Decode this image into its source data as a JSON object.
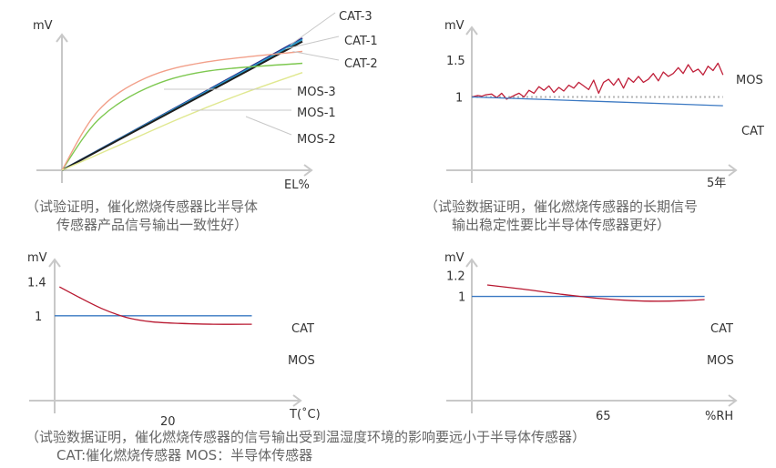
{
  "chart_data": [
    {
      "type": "line",
      "xlabel": "EL%",
      "ylabel": "mV",
      "series": [
        {
          "name": "CAT-3",
          "color": "#2a2a8a",
          "points": [
            [
              0,
              0
            ],
            [
              1,
              1
            ]
          ]
        },
        {
          "name": "CAT-1",
          "color": "#2a9ac8",
          "points": [
            [
              0,
              0
            ],
            [
              1,
              0.99
            ]
          ]
        },
        {
          "name": "CAT-2",
          "color": "#1e1e1e",
          "points": [
            [
              0,
              0
            ],
            [
              1,
              0.975
            ]
          ]
        },
        {
          "name": "MOS-3",
          "color": "#7ec850",
          "points": [
            [
              0,
              0
            ],
            [
              0.15,
              0.38
            ],
            [
              0.35,
              0.62
            ],
            [
              0.6,
              0.75
            ],
            [
              1,
              0.81
            ]
          ]
        },
        {
          "name": "MOS-1",
          "color": "#f2a08a",
          "points": [
            [
              0,
              0
            ],
            [
              0.15,
              0.45
            ],
            [
              0.35,
              0.7
            ],
            [
              0.6,
              0.82
            ],
            [
              1,
              0.9
            ]
          ]
        },
        {
          "name": "MOS-2",
          "color": "#e0e890",
          "points": [
            [
              0,
              0
            ],
            [
              0.25,
              0.2
            ],
            [
              0.5,
              0.4
            ],
            [
              0.75,
              0.58
            ],
            [
              1,
              0.74
            ]
          ]
        }
      ],
      "caption": [
        "（试验证明，催化燃烧传感器比半导体",
        "传感器产品信号输出一致性好）"
      ]
    },
    {
      "type": "line",
      "xlabel": "5年",
      "ylabel": "mV",
      "yticks": [
        "1.5",
        "1"
      ],
      "ylim": [
        0,
        1.9
      ],
      "xlim": [
        0,
        5.2
      ],
      "reference_line": {
        "y": 1,
        "style": "dotted"
      },
      "series": [
        {
          "name": "MOS",
          "color": "#c0203a",
          "points": [
            [
              0,
              1
            ],
            [
              0.12,
              1.02
            ],
            [
              0.2,
              1.01
            ],
            [
              0.28,
              1.03
            ],
            [
              0.4,
              1.04
            ],
            [
              0.5,
              0.99
            ],
            [
              0.6,
              1.05
            ],
            [
              0.7,
              0.97
            ],
            [
              0.85,
              1.02
            ],
            [
              0.95,
              1.05
            ],
            [
              1.05,
              1.0
            ],
            [
              1.15,
              1.09
            ],
            [
              1.25,
              1.05
            ],
            [
              1.35,
              1.14
            ],
            [
              1.45,
              1.09
            ],
            [
              1.55,
              1.15
            ],
            [
              1.65,
              1.06
            ],
            [
              1.75,
              1.13
            ],
            [
              1.85,
              1.08
            ],
            [
              1.95,
              1.16
            ],
            [
              2.05,
              1.12
            ],
            [
              2.15,
              1.2
            ],
            [
              2.25,
              1.15
            ],
            [
              2.35,
              1.1
            ],
            [
              2.45,
              1.23
            ],
            [
              2.55,
              1.05
            ],
            [
              2.65,
              1.2
            ],
            [
              2.75,
              1.24
            ],
            [
              2.85,
              1.16
            ],
            [
              2.95,
              1.25
            ],
            [
              3.05,
              1.12
            ],
            [
              3.15,
              1.26
            ],
            [
              3.25,
              1.2
            ],
            [
              3.35,
              1.28
            ],
            [
              3.45,
              1.2
            ],
            [
              3.55,
              1.24
            ],
            [
              3.65,
              1.32
            ],
            [
              3.75,
              1.22
            ],
            [
              3.85,
              1.34
            ],
            [
              3.95,
              1.28
            ],
            [
              4.05,
              1.32
            ],
            [
              4.15,
              1.4
            ],
            [
              4.25,
              1.32
            ],
            [
              4.35,
              1.44
            ],
            [
              4.45,
              1.34
            ],
            [
              4.55,
              1.38
            ],
            [
              4.65,
              1.3
            ],
            [
              4.75,
              1.42
            ],
            [
              4.85,
              1.36
            ],
            [
              4.95,
              1.46
            ],
            [
              5.05,
              1.3
            ]
          ]
        },
        {
          "name": "CAT",
          "color": "#3a78c2",
          "points": [
            [
              0,
              1
            ],
            [
              5.05,
              0.88
            ]
          ]
        }
      ],
      "caption": [
        "（试验数据证明，催化燃烧传感器的长期信号",
        "输出稳定性要比半导体传感器更好）"
      ]
    },
    {
      "type": "line",
      "xlabel": "T(˚C)",
      "ylabel": "mV",
      "xticks": [
        "20"
      ],
      "yticks": [
        "1.4",
        "1"
      ],
      "ylim": [
        0,
        1.62
      ],
      "xlim": [
        0,
        50
      ],
      "series": [
        {
          "name": "CAT",
          "color": "#3a78c2",
          "points": [
            [
              0,
              1
            ],
            [
              41,
              1
            ]
          ]
        },
        {
          "name": "MOS",
          "color": "#b81830",
          "points": [
            [
              1,
              1.34
            ],
            [
              5,
              1.22
            ],
            [
              10,
              1.08
            ],
            [
              15,
              0.98
            ],
            [
              20,
              0.93
            ],
            [
              26,
              0.91
            ],
            [
              33,
              0.9
            ],
            [
              41,
              0.9
            ]
          ]
        }
      ]
    },
    {
      "type": "line",
      "xlabel": "%RH",
      "ylabel": "mV",
      "xticks": [
        "65"
      ],
      "yticks": [
        "1.2",
        "1"
      ],
      "ylim": [
        0,
        1.32
      ],
      "xlim": [
        0,
        100
      ],
      "series": [
        {
          "name": "CAT",
          "color": "#3a78c2",
          "points": [
            [
              0,
              1
            ],
            [
              90,
              1
            ]
          ]
        },
        {
          "name": "MOS",
          "color": "#b81830",
          "points": [
            [
              6,
              1.11
            ],
            [
              20,
              1.07
            ],
            [
              35,
              1.02
            ],
            [
              50,
              0.98
            ],
            [
              62,
              0.96
            ],
            [
              72,
              0.955
            ],
            [
              82,
              0.96
            ],
            [
              90,
              0.97
            ]
          ]
        }
      ]
    }
  ],
  "footer": {
    "line1": "（试验数据证明，催化燃烧传感器的信号输出受到温湿度环境的影响要远小于半导体传感器）",
    "line2": "CAT:催化燃烧传感器        MOS：半导体传感器"
  },
  "colors": {
    "axis": "#c8c8c8",
    "caption": "#666666",
    "text": "#333333"
  }
}
